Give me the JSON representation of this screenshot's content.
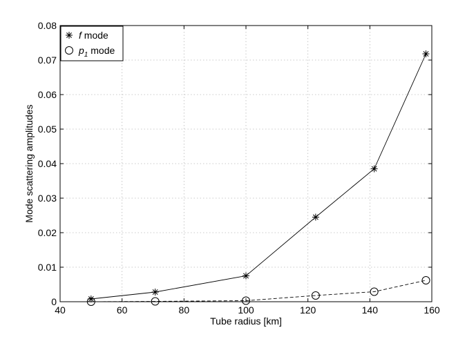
{
  "chart_data": {
    "type": "line",
    "xlabel": "Tube radius [km]",
    "ylabel": "Mode scattering amplitudes",
    "xlim": [
      40,
      160
    ],
    "ylim": [
      0,
      0.08
    ],
    "xticks": [
      40,
      60,
      80,
      100,
      120,
      140,
      160
    ],
    "yticks": [
      0,
      0.01,
      0.02,
      0.03,
      0.04,
      0.05,
      0.06,
      0.07,
      0.08
    ],
    "xtick_labels": [
      "40",
      "60",
      "80",
      "100",
      "120",
      "140",
      "160"
    ],
    "ytick_labels": [
      "0",
      "0.01",
      "0.02",
      "0.03",
      "0.04",
      "0.05",
      "0.06",
      "0.07",
      "0.08"
    ],
    "grid": true,
    "legend_position": "top-left",
    "series": [
      {
        "name": "f mode",
        "name_italic": "f",
        "name_rest": " mode",
        "marker": "asterisk",
        "line": "solid",
        "color": "#000000",
        "x": [
          50,
          70.7,
          100,
          122.5,
          141.4,
          158.1
        ],
        "y": [
          0.0008,
          0.0028,
          0.0075,
          0.0245,
          0.0385,
          0.0718
        ]
      },
      {
        "name": "p1 mode",
        "name_italic": "p",
        "name_sub": "1",
        "name_rest": " mode",
        "marker": "circle",
        "line": "dashed",
        "color": "#000000",
        "x": [
          50,
          70.7,
          100,
          122.5,
          141.4,
          158.1
        ],
        "y": [
          0.0,
          0.0001,
          0.0003,
          0.0018,
          0.0029,
          0.0062
        ]
      }
    ]
  }
}
